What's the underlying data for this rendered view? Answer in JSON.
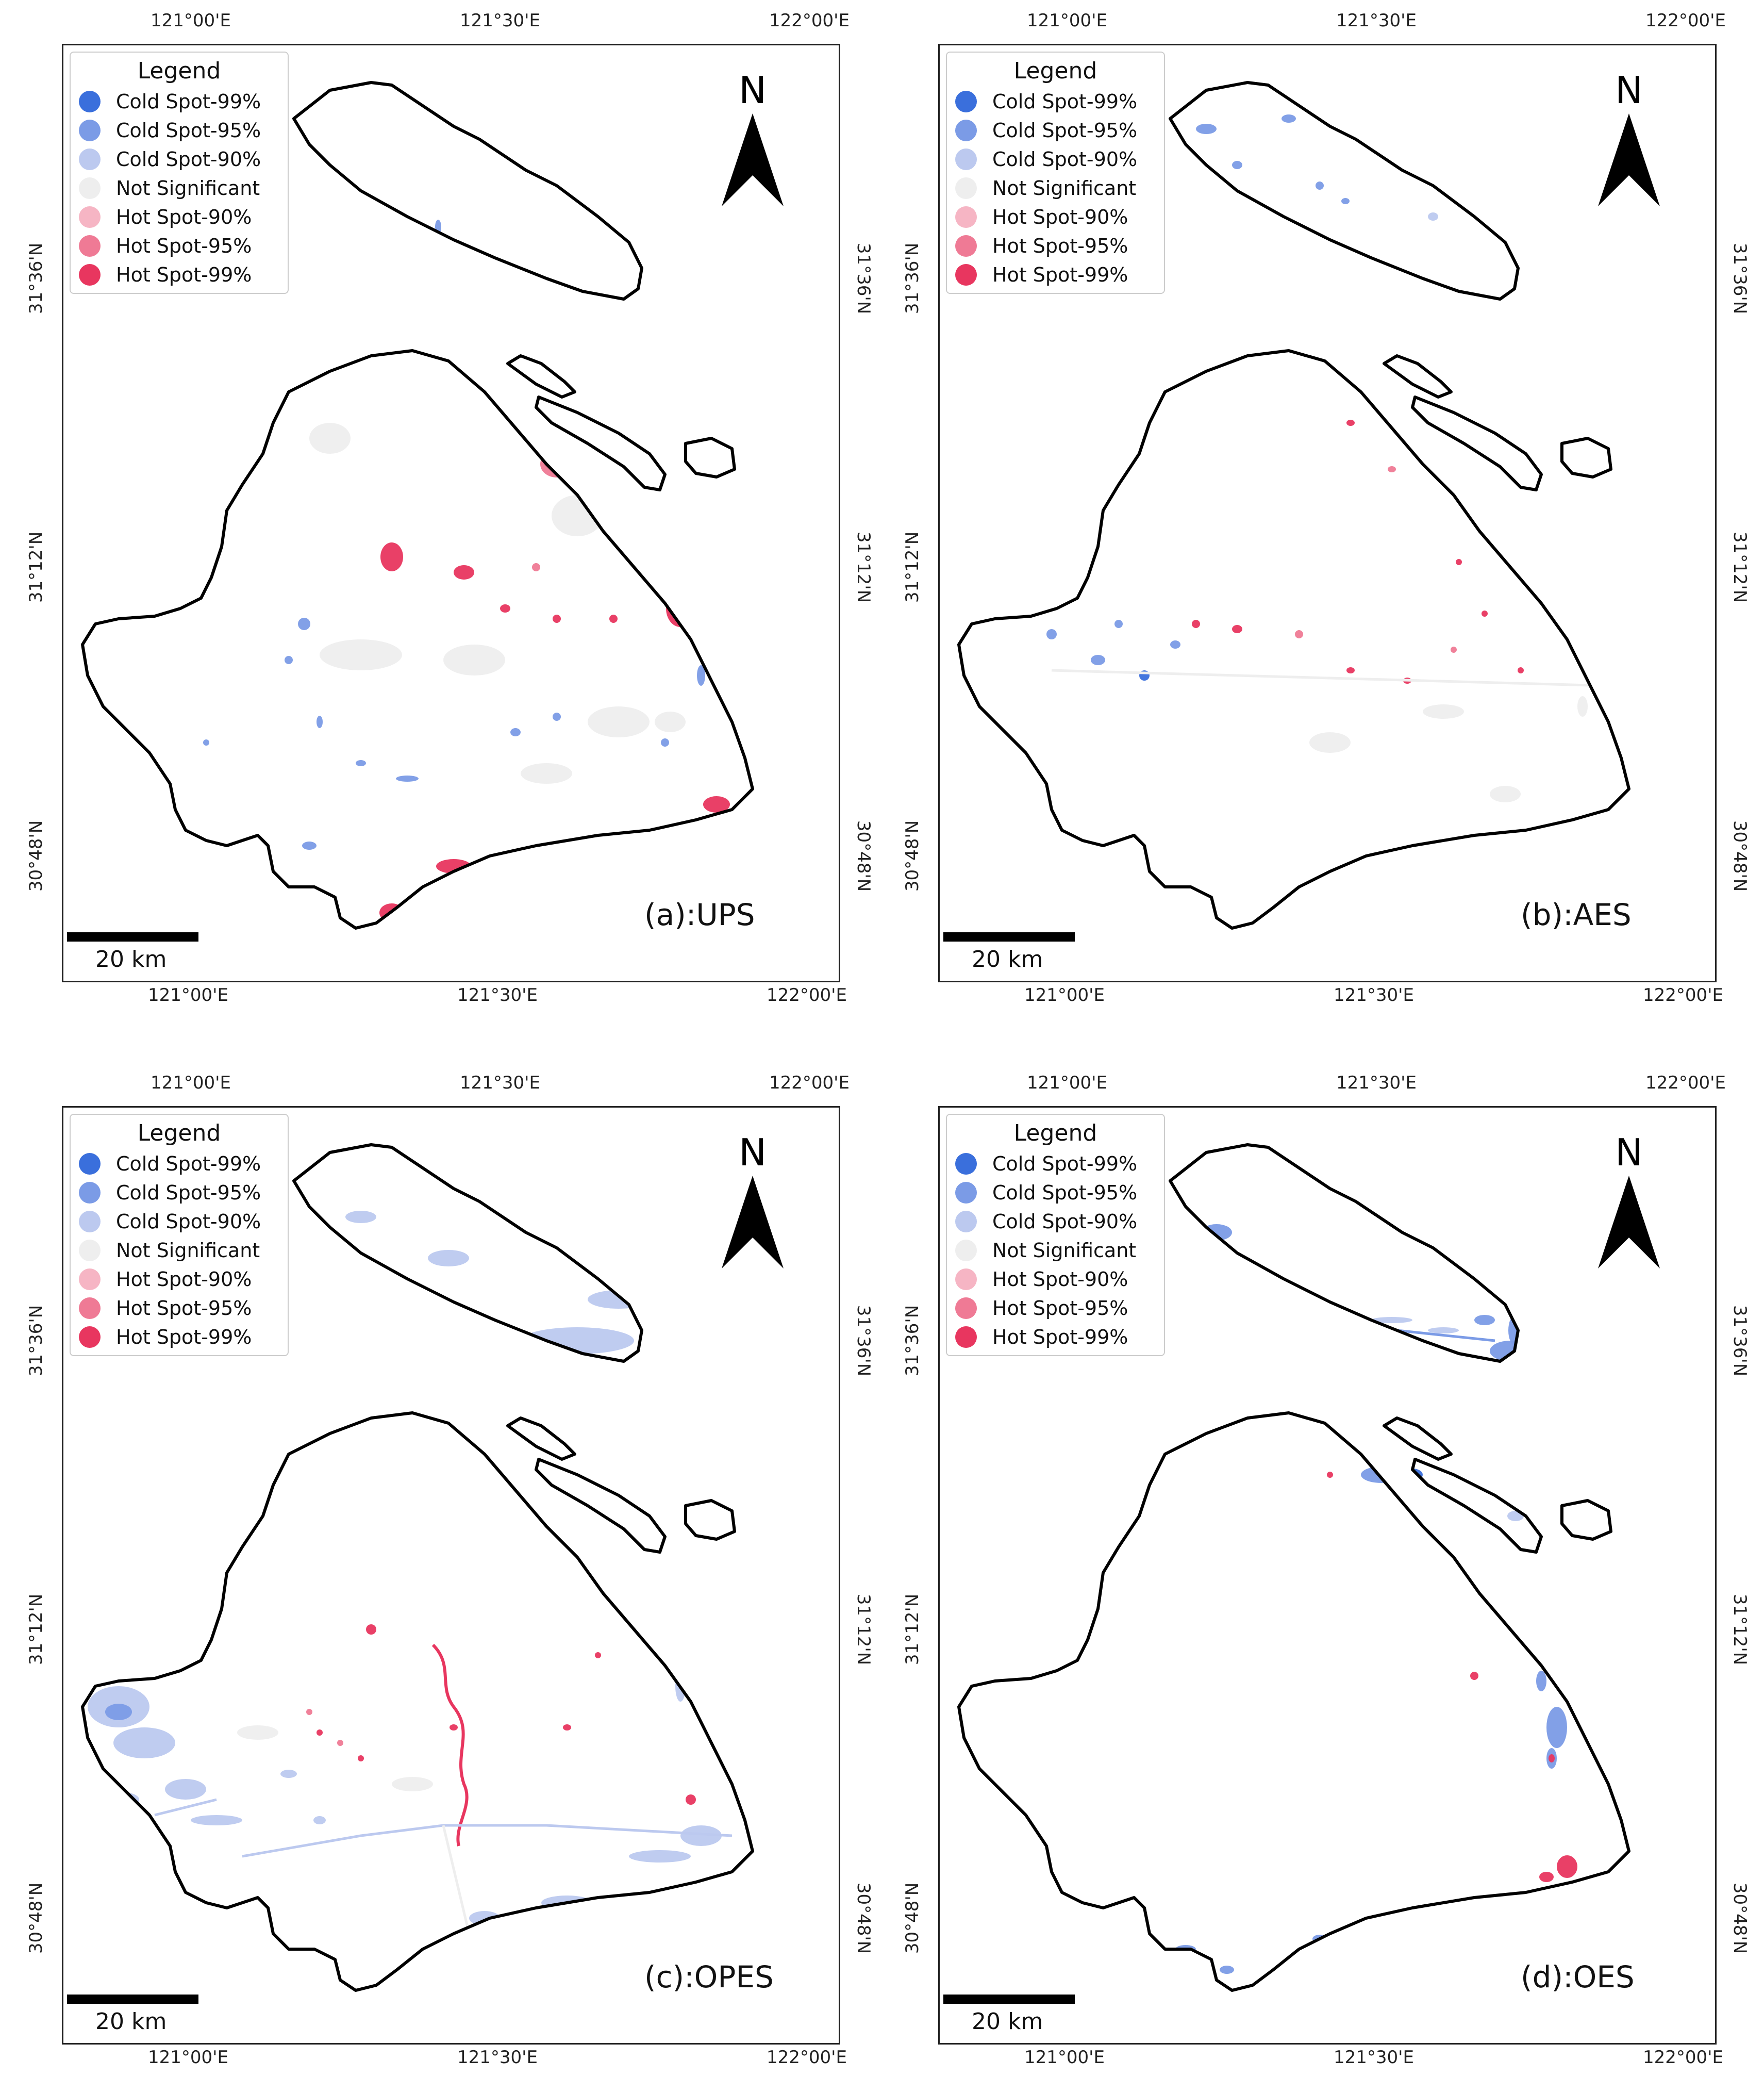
{
  "legend": {
    "title": "Legend",
    "items": [
      {
        "label": "Cold Spot-99%",
        "color": "#3a6fdc"
      },
      {
        "label": "Cold Spot-95%",
        "color": "#7b9be6"
      },
      {
        "label": "Cold Spot-90%",
        "color": "#bcc9ef"
      },
      {
        "label": "Not Significant",
        "color": "#eeeeee"
      },
      {
        "label": "Hot Spot-90%",
        "color": "#f6b5c4"
      },
      {
        "label": "Hot Spot-95%",
        "color": "#ef7a95"
      },
      {
        "label": "Hot Spot-99%",
        "color": "#e8365f"
      }
    ]
  },
  "north_label": "N",
  "scale_label": "20 km",
  "lon_ticks": [
    "121°00'E",
    "121°30'E",
    "122°00'E"
  ],
  "lat_ticks": [
    "31°36'N",
    "31°12'N",
    "30°48'N"
  ],
  "panels": [
    {
      "label": "(a):UPS"
    },
    {
      "label": "(b):AES"
    },
    {
      "label": "(c):OPES"
    },
    {
      "label": "(d):OES"
    }
  ]
}
